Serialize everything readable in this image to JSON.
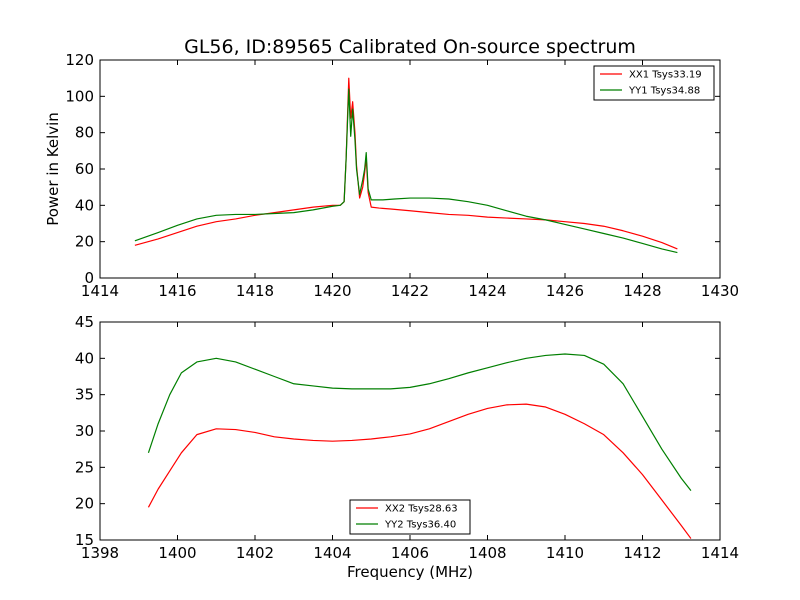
{
  "chart_data": [
    {
      "type": "line",
      "title": "GL56, ID:89565 Calibrated On-source spectrum",
      "xlabel": "",
      "ylabel": "Power in Kelvin",
      "xlim": [
        1414,
        1430
      ],
      "ylim": [
        0,
        120
      ],
      "x_ticks": [
        "1414",
        "1416",
        "1418",
        "1420",
        "1422",
        "1424",
        "1426",
        "1428",
        "1430"
      ],
      "y_ticks": [
        "0",
        "20",
        "40",
        "60",
        "80",
        "100",
        "120"
      ],
      "legend_position": "top-right",
      "series": [
        {
          "name": "XX1 Tsys33.19",
          "color": "#ff0000",
          "x": [
            1414.9,
            1415.5,
            1416.0,
            1416.5,
            1417.0,
            1417.5,
            1418.0,
            1418.5,
            1419.0,
            1419.5,
            1420.0,
            1420.2,
            1420.3,
            1420.35,
            1420.42,
            1420.47,
            1420.52,
            1420.58,
            1420.62,
            1420.7,
            1420.78,
            1420.83,
            1420.87,
            1420.92,
            1421.0,
            1421.2,
            1421.5,
            1422.0,
            1422.5,
            1423.0,
            1423.5,
            1424.0,
            1424.5,
            1425.0,
            1425.5,
            1426.0,
            1426.5,
            1427.0,
            1427.5,
            1428.0,
            1428.5,
            1428.9
          ],
          "y": [
            18,
            21.5,
            25,
            28.5,
            31,
            32.5,
            34.5,
            36,
            37.5,
            39,
            40,
            40,
            42,
            65,
            110,
            88,
            97,
            80,
            62,
            44,
            50,
            58,
            66,
            47,
            39,
            38.5,
            38,
            37,
            36,
            35,
            34.5,
            33.5,
            33,
            32.5,
            32,
            31,
            30,
            28.5,
            26,
            23,
            19.5,
            16
          ]
        },
        {
          "name": "YY1 Tsys34.88",
          "color": "#007f00",
          "x": [
            1414.9,
            1415.5,
            1416.0,
            1416.5,
            1417.0,
            1417.5,
            1418.0,
            1418.5,
            1419.0,
            1419.5,
            1420.0,
            1420.2,
            1420.3,
            1420.35,
            1420.42,
            1420.47,
            1420.52,
            1420.58,
            1420.62,
            1420.7,
            1420.78,
            1420.83,
            1420.87,
            1420.92,
            1421.0,
            1421.3,
            1421.6,
            1422.0,
            1422.5,
            1423.0,
            1423.5,
            1424.0,
            1424.5,
            1425.0,
            1425.5,
            1426.0,
            1426.5,
            1427.0,
            1427.5,
            1428.0,
            1428.5,
            1428.9
          ],
          "y": [
            20.5,
            25,
            29,
            32.5,
            34.5,
            35,
            35,
            35.5,
            36,
            37.5,
            39.5,
            40,
            42,
            65,
            104,
            78,
            93,
            76,
            60,
            46,
            54,
            60,
            69,
            49,
            43,
            43,
            43.5,
            44,
            44,
            43.5,
            42,
            40,
            37,
            34,
            32,
            29.5,
            27,
            24.5,
            22,
            19,
            16,
            14
          ]
        }
      ]
    },
    {
      "type": "line",
      "title": "",
      "xlabel": "Frequency (MHz)",
      "ylabel": "",
      "xlim": [
        1398,
        1414
      ],
      "ylim": [
        15,
        45
      ],
      "x_ticks": [
        "1398",
        "1400",
        "1402",
        "1404",
        "1406",
        "1408",
        "1410",
        "1412",
        "1414"
      ],
      "y_ticks": [
        "15",
        "20",
        "25",
        "30",
        "35",
        "40",
        "45"
      ],
      "legend_position": "bottom-center",
      "series": [
        {
          "name": "XX2 Tsys28.63",
          "color": "#ff0000",
          "x": [
            1399.25,
            1399.5,
            1399.8,
            1400.1,
            1400.5,
            1401.0,
            1401.5,
            1402.0,
            1402.5,
            1403.0,
            1403.5,
            1404.0,
            1404.5,
            1405.0,
            1405.5,
            1406.0,
            1406.5,
            1407.0,
            1407.5,
            1408.0,
            1408.5,
            1409.0,
            1409.5,
            1410.0,
            1410.5,
            1411.0,
            1411.5,
            1412.0,
            1412.5,
            1413.0,
            1413.25
          ],
          "y": [
            19.5,
            22,
            24.5,
            27,
            29.5,
            30.3,
            30.2,
            29.8,
            29.2,
            28.9,
            28.7,
            28.6,
            28.7,
            28.9,
            29.2,
            29.6,
            30.3,
            31.3,
            32.3,
            33.1,
            33.6,
            33.7,
            33.3,
            32.3,
            31,
            29.5,
            27,
            24,
            20.5,
            17,
            15.2
          ]
        },
        {
          "name": "YY2 Tsys36.40",
          "color": "#007f00",
          "x": [
            1399.25,
            1399.5,
            1399.8,
            1400.1,
            1400.5,
            1401.0,
            1401.5,
            1402.0,
            1402.5,
            1403.0,
            1403.5,
            1404.0,
            1404.5,
            1405.0,
            1405.5,
            1406.0,
            1406.5,
            1407.0,
            1407.5,
            1408.0,
            1408.5,
            1409.0,
            1409.5,
            1410.0,
            1410.5,
            1411.0,
            1411.5,
            1412.0,
            1412.5,
            1413.0,
            1413.25
          ],
          "y": [
            27,
            31,
            35,
            38,
            39.5,
            40,
            39.5,
            38.5,
            37.5,
            36.5,
            36.2,
            35.9,
            35.8,
            35.8,
            35.8,
            36,
            36.5,
            37.2,
            38,
            38.7,
            39.4,
            40,
            40.4,
            40.6,
            40.4,
            39.2,
            36.5,
            32,
            27.5,
            23.5,
            21.8
          ]
        }
      ]
    }
  ]
}
